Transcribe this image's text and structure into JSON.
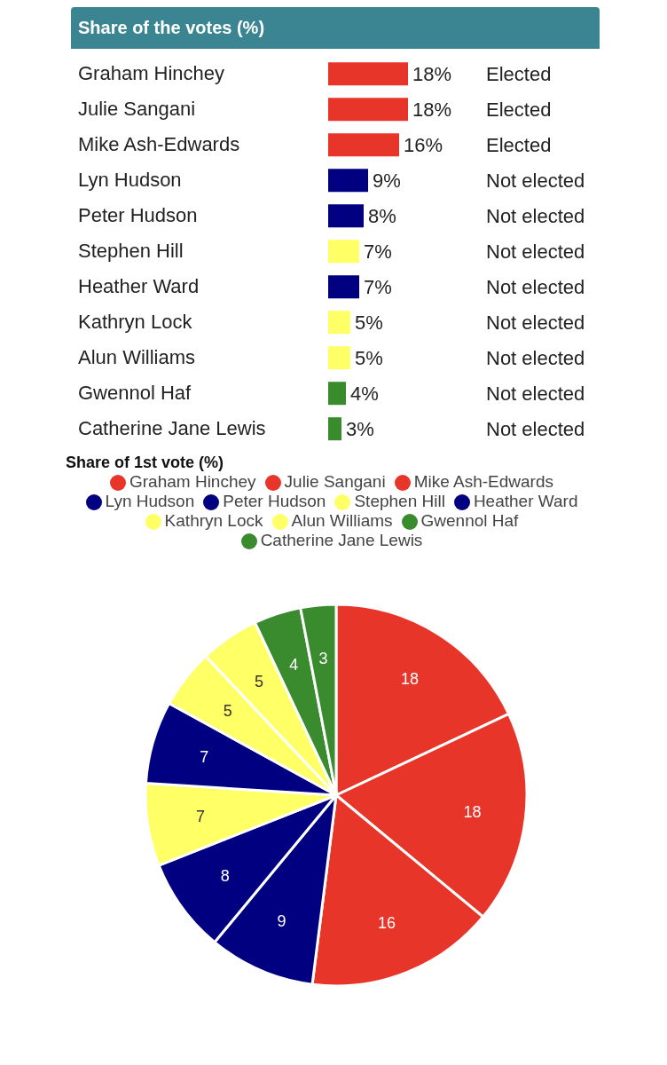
{
  "chart_data": [
    {
      "type": "bar",
      "orientation": "horizontal",
      "title": "Share of the votes (%)",
      "categories": [
        "Graham Hinchey",
        "Julie Sangani",
        "Mike Ash-Edwards",
        "Lyn Hudson",
        "Peter Hudson",
        "Stephen Hill",
        "Heather Ward",
        "Kathryn Lock",
        "Alun Williams",
        "Gwennol Haf",
        "Catherine Jane Lewis"
      ],
      "values": [
        18,
        18,
        16,
        9,
        8,
        7,
        7,
        5,
        5,
        4,
        3
      ],
      "colors": [
        "#e8352a",
        "#e8352a",
        "#e8352a",
        "#000080",
        "#000080",
        "#ffff66",
        "#000080",
        "#ffff66",
        "#ffff66",
        "#3a8a2e",
        "#3a8a2e"
      ],
      "value_labels": [
        "18%",
        "18%",
        "16%",
        "9%",
        "8%",
        "7%",
        "7%",
        "5%",
        "5%",
        "4%",
        "3%"
      ],
      "annotations": [
        "Elected",
        "Elected",
        "Elected",
        "Not elected",
        "Not elected",
        "Not elected",
        "Not elected",
        "Not elected",
        "Not elected",
        "Not elected",
        "Not elected"
      ]
    },
    {
      "type": "pie",
      "title": "Share of 1st vote (%)",
      "legend": "top",
      "data_labels": true,
      "categories": [
        "Graham Hinchey",
        "Julie Sangani",
        "Mike Ash-Edwards",
        "Lyn Hudson",
        "Peter Hudson",
        "Stephen Hill",
        "Heather Ward",
        "Kathryn Lock",
        "Alun Williams",
        "Gwennol Haf",
        "Catherine Jane Lewis"
      ],
      "values": [
        18,
        18,
        16,
        9,
        8,
        7,
        7,
        5,
        5,
        4,
        3
      ],
      "colors": [
        "#e8352a",
        "#e8352a",
        "#e8352a",
        "#000080",
        "#000080",
        "#ffff66",
        "#000080",
        "#ffff66",
        "#ffff66",
        "#3a8a2e",
        "#3a8a2e"
      ]
    }
  ]
}
